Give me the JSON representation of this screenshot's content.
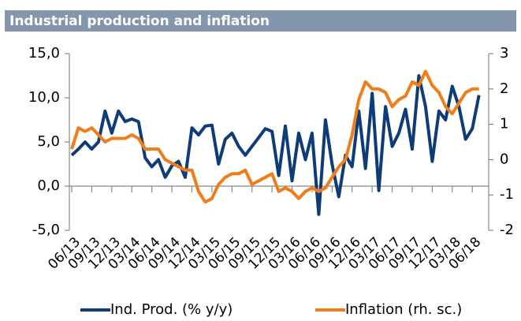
{
  "chart_data": {
    "type": "line",
    "title": "Industrial production and inflation",
    "categories": [
      "06/13",
      null,
      null,
      "09/13",
      null,
      null,
      "12/13",
      null,
      null,
      "03/14",
      null,
      null,
      "06/14",
      null,
      null,
      "09/14",
      null,
      null,
      "12/14",
      null,
      null,
      "03/15",
      null,
      null,
      "06/15",
      null,
      null,
      "09/15",
      null,
      null,
      "12/15",
      null,
      null,
      "03/16",
      null,
      null,
      "06/16",
      null,
      null,
      "09/16",
      null,
      null,
      "12/16",
      null,
      null,
      "03/17",
      null,
      null,
      "06/17",
      null,
      null,
      "09/17",
      null,
      null,
      "12/17",
      null,
      null,
      "03/18",
      null,
      null,
      "06/18",
      null
    ],
    "series": [
      {
        "name": "Ind. Prod. (% y/y)",
        "color": "#0d3c78",
        "axis": "y",
        "values": [
          3.5,
          4.2,
          5.0,
          4.2,
          5.0,
          8.5,
          6.0,
          8.5,
          7.3,
          7.6,
          7.3,
          3.2,
          2.2,
          3.0,
          1.0,
          2.3,
          2.8,
          1.0,
          6.6,
          5.8,
          6.8,
          6.9,
          2.5,
          5.3,
          6.0,
          4.5,
          3.5,
          4.5,
          5.5,
          6.5,
          6.2,
          1.2,
          6.8,
          0.6,
          6.0,
          3.0,
          6.0,
          -3.2,
          7.5,
          2.5,
          -1.2,
          3.5,
          2.2,
          8.5,
          2.0,
          10.5,
          -0.5,
          9.0,
          4.5,
          6.0,
          8.7,
          4.2,
          12.5,
          9.0,
          2.8,
          8.5,
          7.5,
          11.3,
          9.0,
          5.3,
          6.5,
          10.3
        ]
      },
      {
        "name": "Inflation (rh. sc.)",
        "color": "#f07d1a",
        "axis": "y2",
        "values": [
          0.3,
          0.9,
          0.8,
          0.9,
          0.7,
          0.5,
          0.6,
          0.6,
          0.6,
          0.7,
          0.6,
          0.3,
          0.3,
          0.3,
          0.0,
          -0.1,
          -0.2,
          -0.3,
          -0.3,
          -0.9,
          -1.2,
          -1.1,
          -0.7,
          -0.5,
          -0.4,
          -0.4,
          -0.3,
          -0.7,
          -0.6,
          -0.5,
          -0.4,
          -0.9,
          -0.8,
          -0.9,
          -1.1,
          -0.9,
          -0.8,
          -0.9,
          -0.8,
          -0.5,
          -0.2,
          0.0,
          0.7,
          1.7,
          2.2,
          2.0,
          2.0,
          1.9,
          1.5,
          1.7,
          1.8,
          2.2,
          2.1,
          2.5,
          2.1,
          1.9,
          1.5,
          1.3,
          1.6,
          1.9,
          2.0,
          2.0
        ]
      }
    ],
    "ylim": [
      -5,
      15
    ],
    "yticks": [
      {
        "value": 15,
        "label": "15,0"
      },
      {
        "value": 10,
        "label": "10,0"
      },
      {
        "value": 5,
        "label": "5,0"
      },
      {
        "value": 0,
        "label": "0,0"
      },
      {
        "value": -5,
        "label": "-5,0"
      }
    ],
    "y2lim": [
      -2,
      3
    ],
    "y2ticks": [
      3,
      2,
      1,
      0,
      -1,
      -2
    ],
    "legend": "bottom"
  }
}
